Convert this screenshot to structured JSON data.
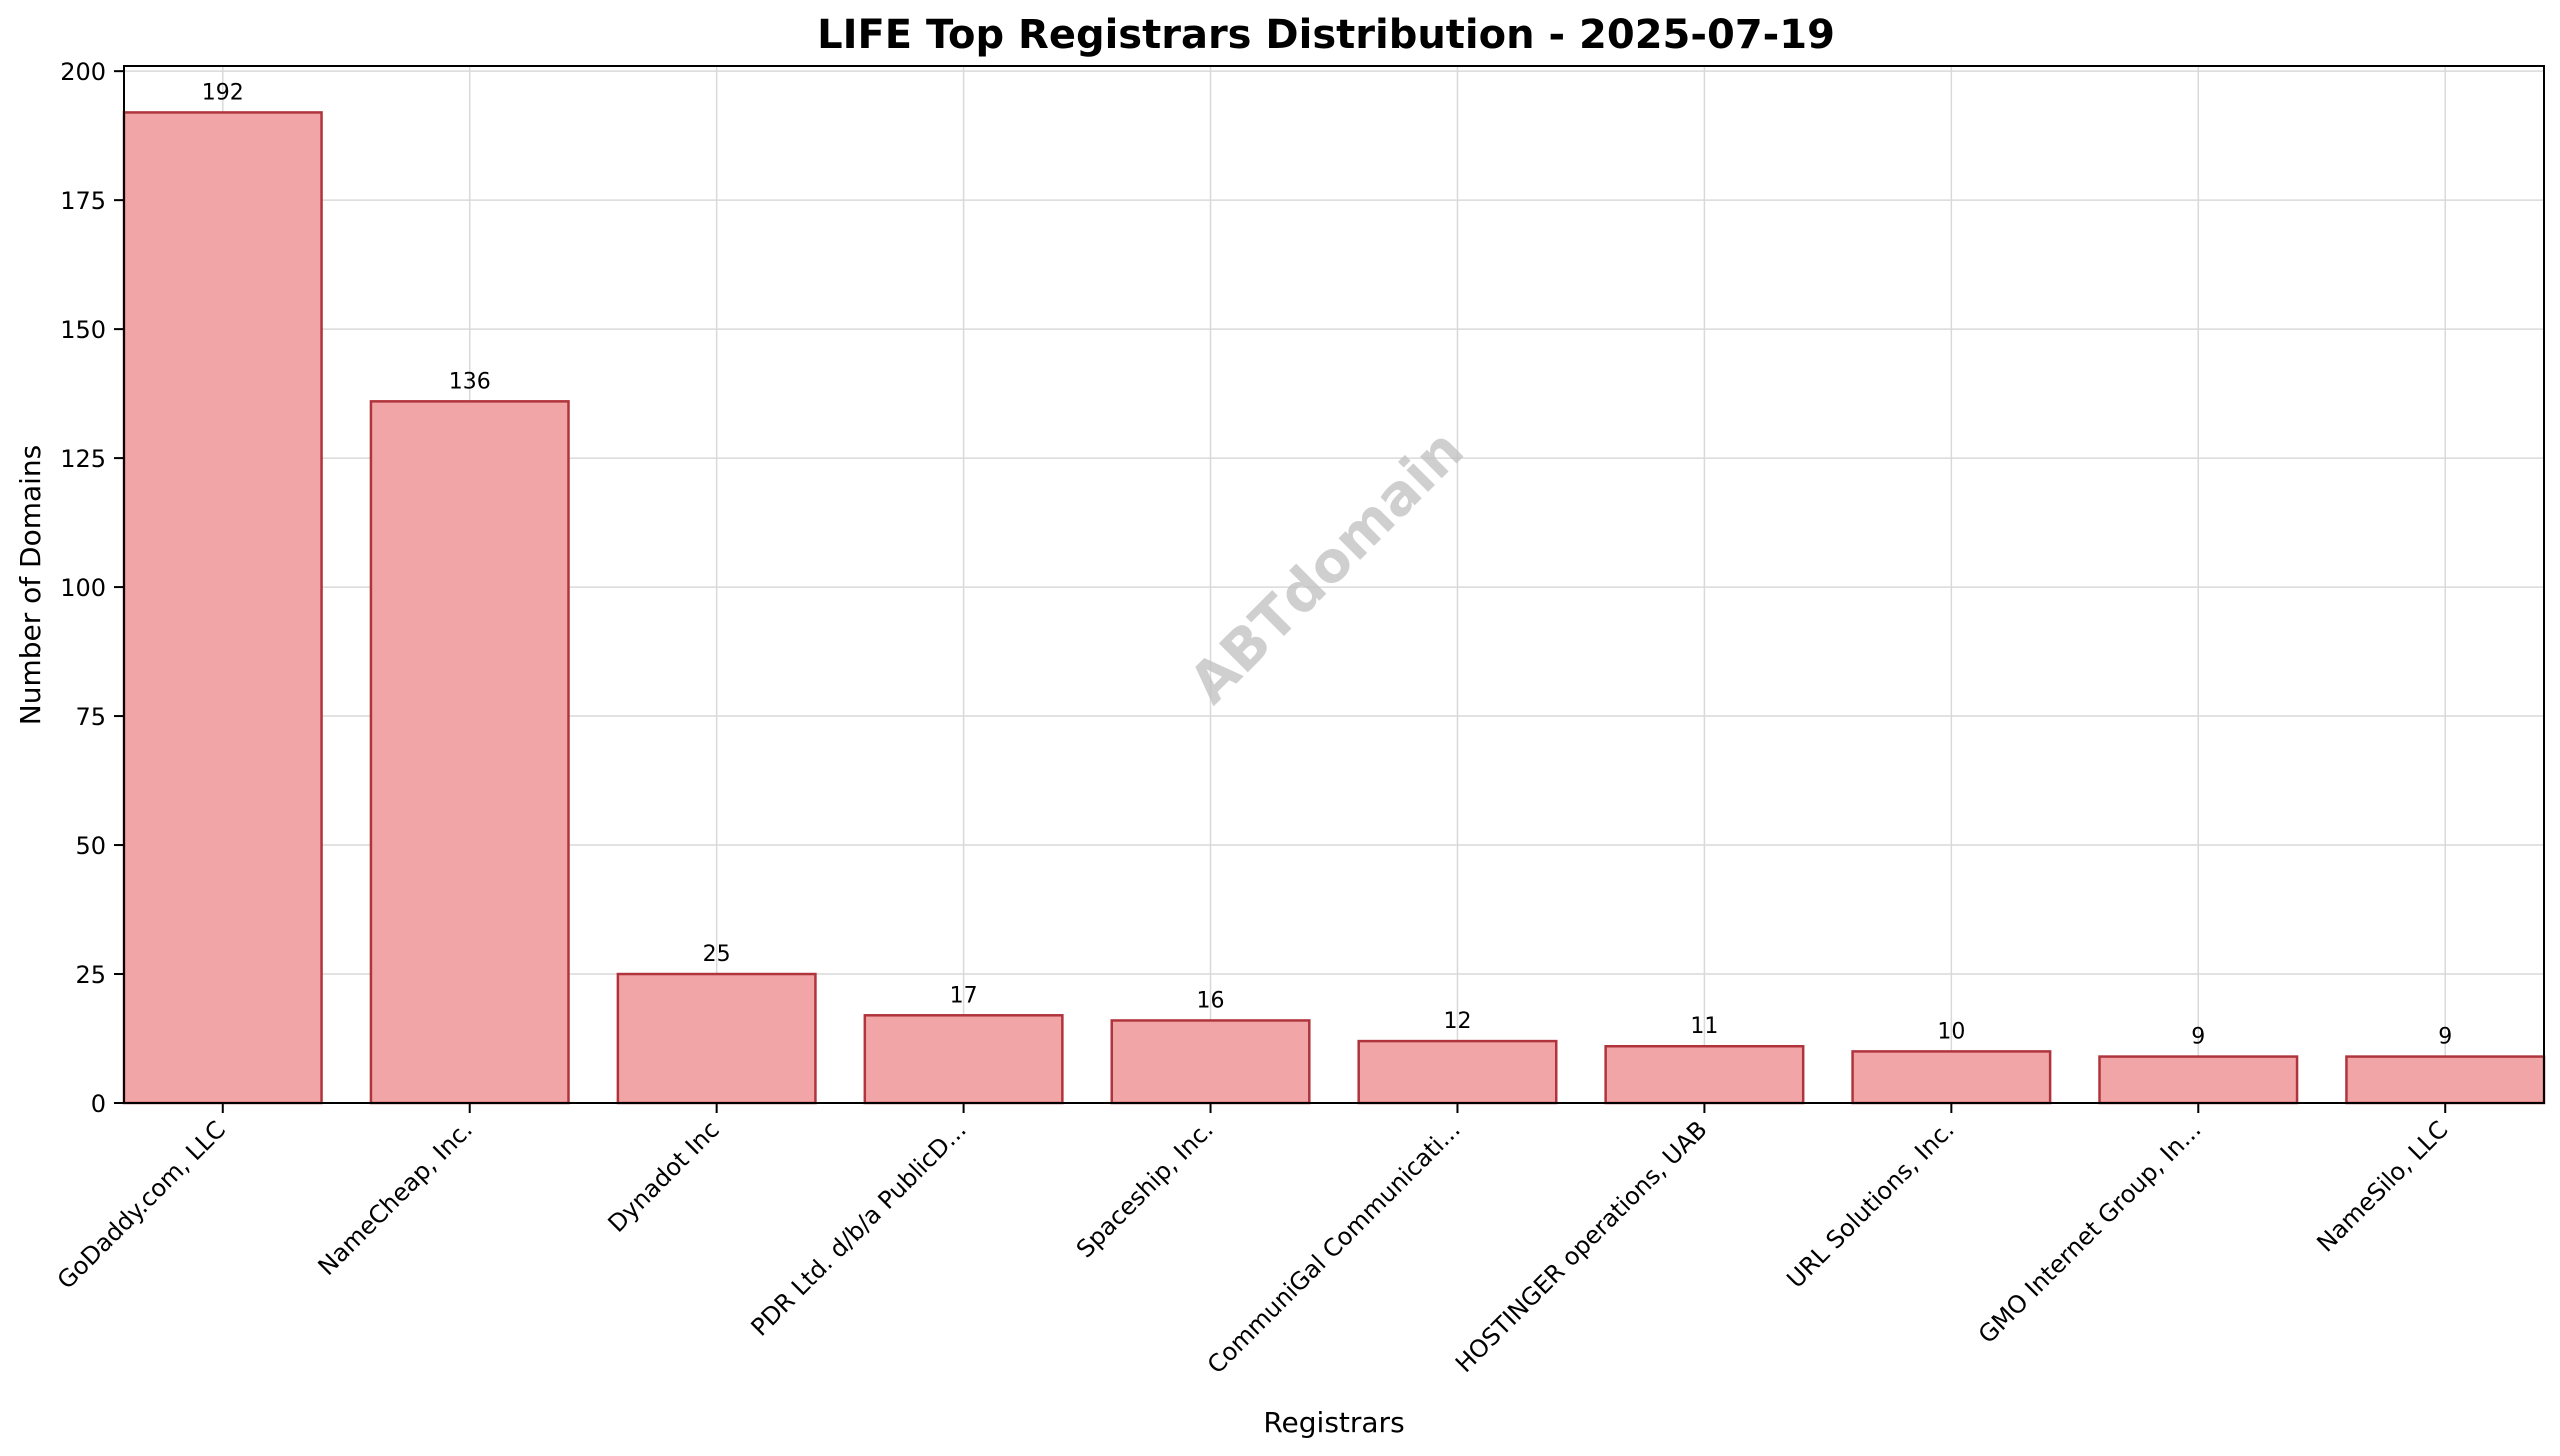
{
  "chart_data": {
    "type": "bar",
    "title": "LIFE Top Registrars Distribution - 2025-07-19",
    "xlabel": "Registrars",
    "ylabel": "Number of Domains",
    "categories": [
      "GoDaddy.com, LLC",
      "NameCheap, Inc.",
      "Dynadot Inc",
      "PDR Ltd. d/b/a PublicD...",
      "Spaceship, Inc.",
      "CommuniGal Communicati...",
      "HOSTINGER operations, UAB",
      "URL Solutions, Inc.",
      "GMO Internet Group, In...",
      "NameSilo, LLC"
    ],
    "values": [
      192,
      136,
      25,
      17,
      16,
      12,
      11,
      10,
      9,
      9
    ],
    "ylim": [
      0,
      201
    ],
    "yticks": [
      0,
      25,
      50,
      75,
      100,
      125,
      150,
      175,
      200
    ],
    "grid": true,
    "legend": "none",
    "bar_color": "#f2a5a7",
    "bar_edge_color": "#b0343c",
    "watermark": "ABTdomain"
  }
}
